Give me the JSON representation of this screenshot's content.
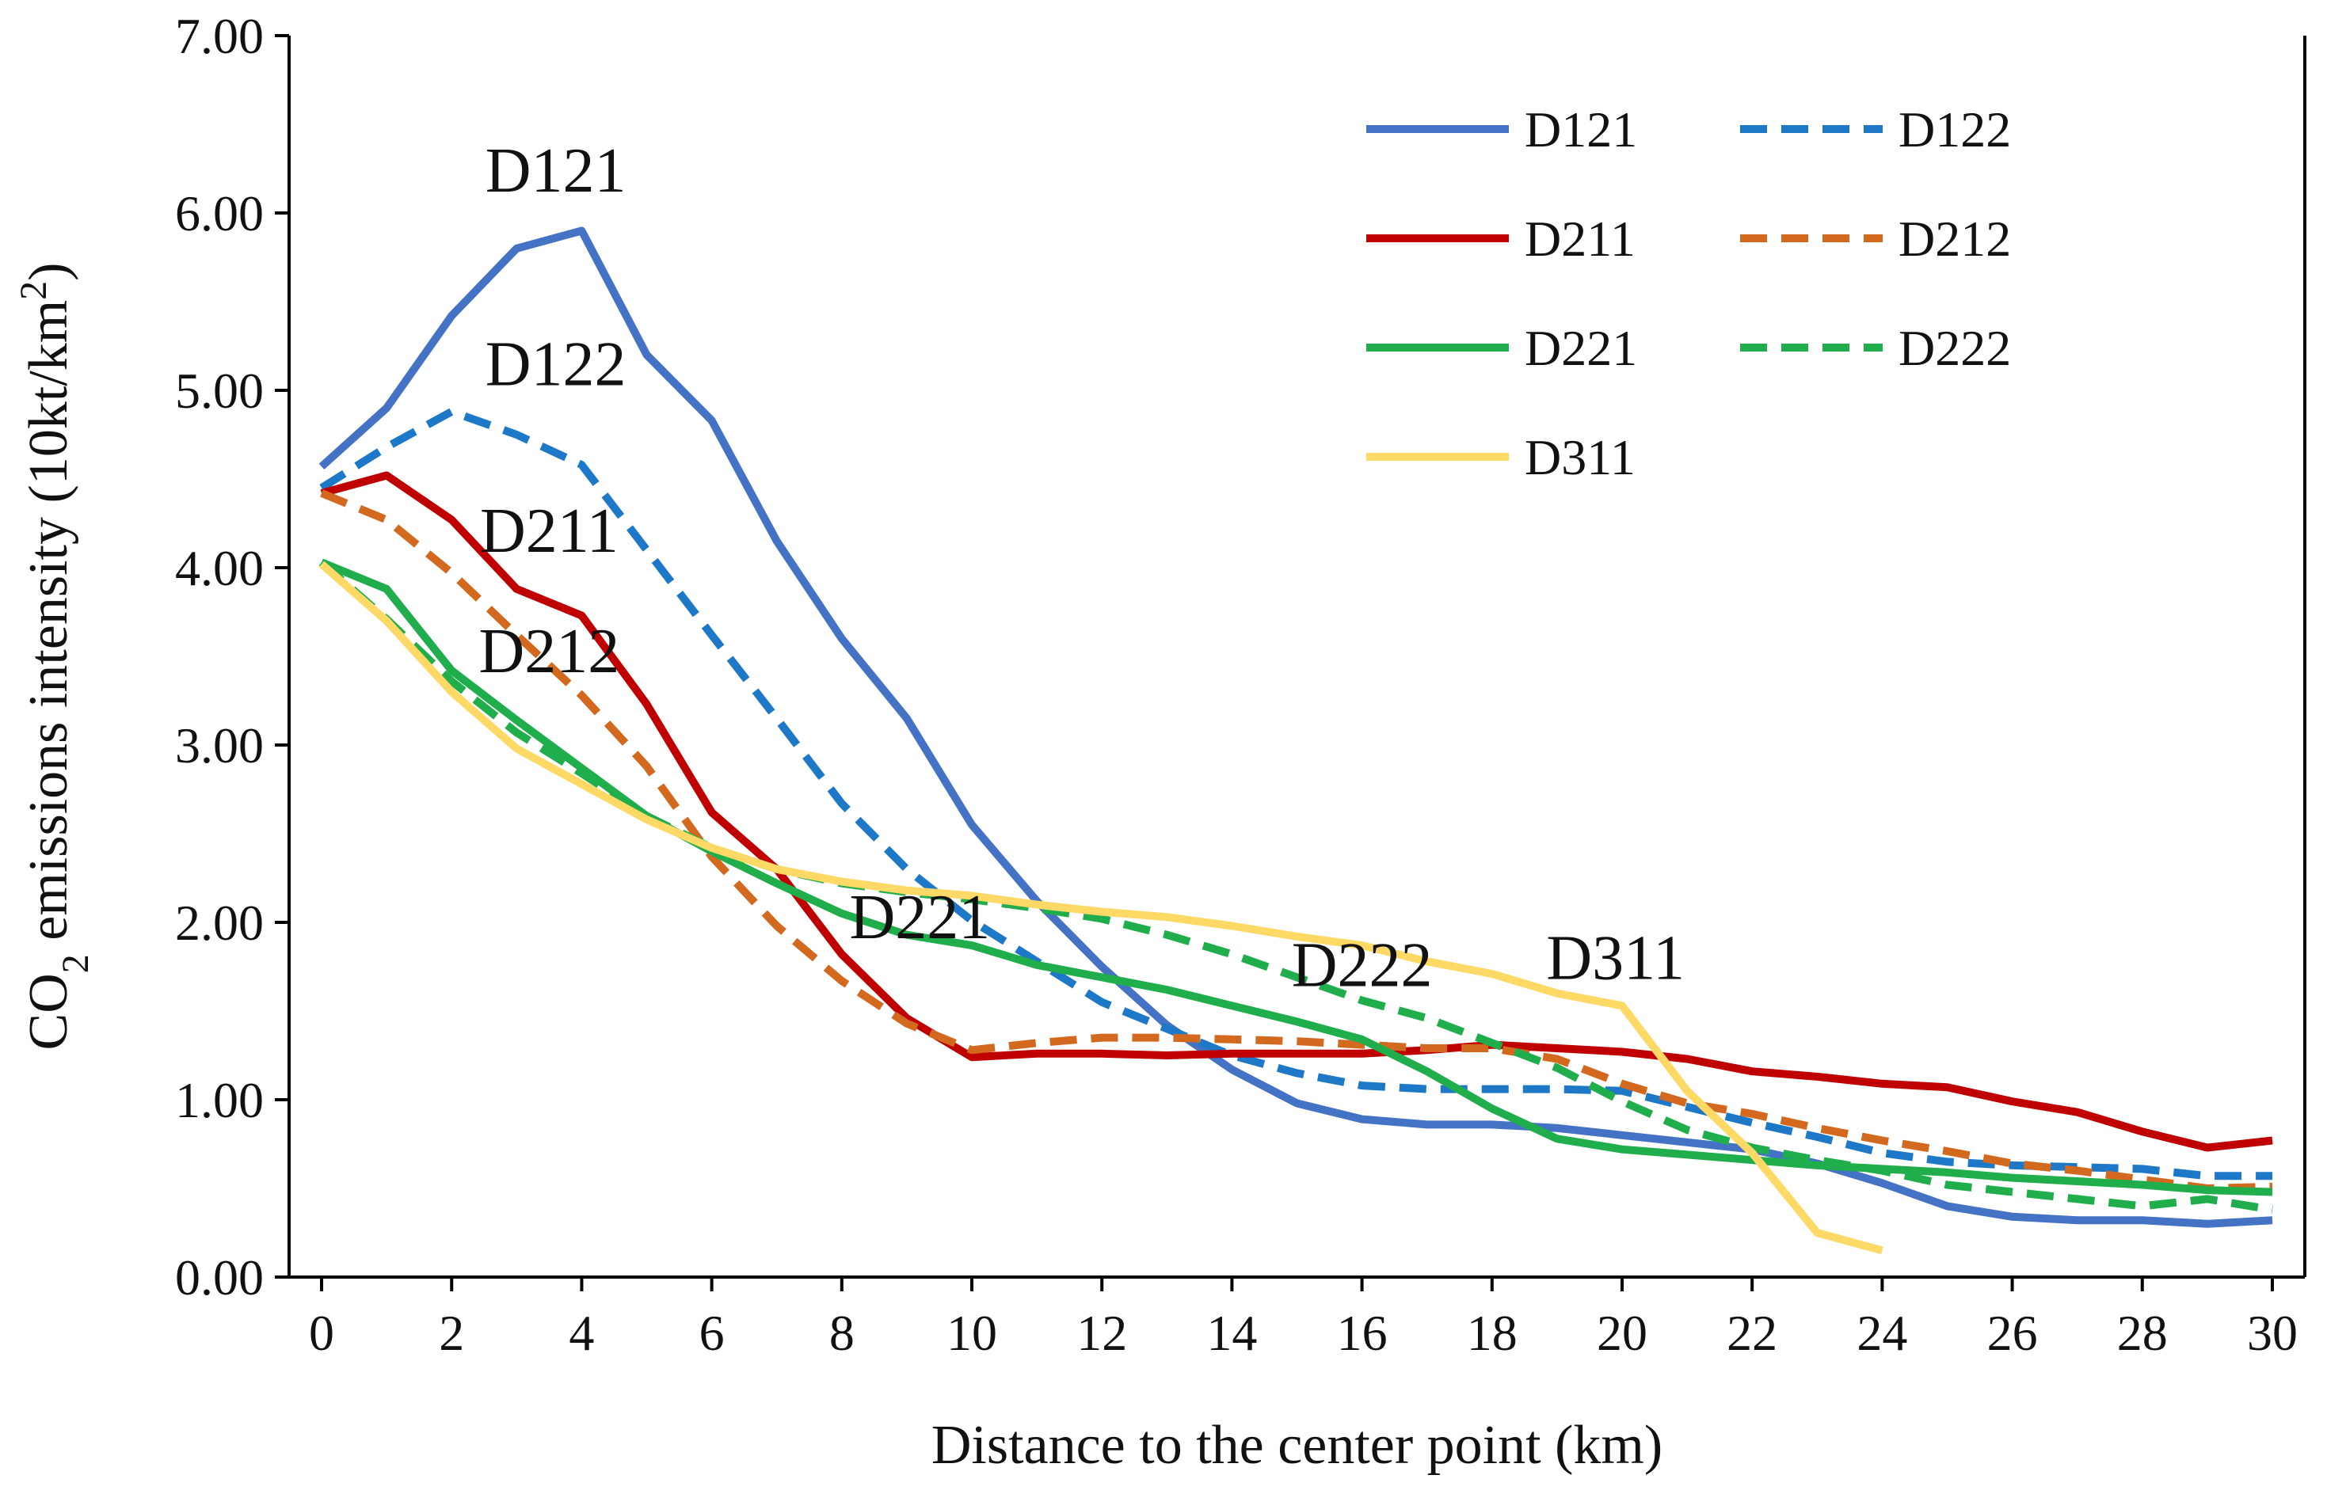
{
  "chart_data": {
    "type": "line",
    "title": "",
    "xlabel": "Distance to the center point (km)",
    "ylabel": {
      "prefix": "CO",
      "subscript": "2",
      "suffix": " emissions intensity (10kt/km",
      "superscript": "2",
      "close": ")"
    },
    "xlim": [
      -0.5,
      30.5
    ],
    "ylim": [
      0,
      7
    ],
    "x_ticks": [
      0,
      2,
      4,
      6,
      8,
      10,
      12,
      14,
      16,
      18,
      20,
      22,
      24,
      26,
      28,
      30
    ],
    "x_tick_labels": [
      "0",
      "2",
      "4",
      "6",
      "8",
      "10",
      "12",
      "14",
      "16",
      "18",
      "20",
      "22",
      "24",
      "26",
      "28",
      "30"
    ],
    "y_ticks": [
      0,
      1,
      2,
      3,
      4,
      5,
      6,
      7
    ],
    "y_tick_labels": [
      "0.00",
      "1.00",
      "2.00",
      "3.00",
      "4.00",
      "5.00",
      "6.00",
      "7.00"
    ],
    "grid": false,
    "legend_position": "top-right",
    "series": [
      {
        "name": "D121",
        "color": "#4472C4",
        "dash": "solid",
        "x": [
          0,
          1,
          2,
          3,
          4,
          5,
          6,
          7,
          8,
          9,
          10,
          11,
          12,
          13,
          14,
          15,
          16,
          17,
          18,
          19,
          20,
          21,
          22,
          23,
          24,
          25,
          26,
          27,
          28,
          29,
          30
        ],
        "y": [
          4.57,
          4.9,
          5.42,
          5.8,
          5.9,
          5.2,
          4.83,
          4.15,
          3.6,
          3.15,
          2.55,
          2.12,
          1.75,
          1.42,
          1.17,
          0.98,
          0.89,
          0.86,
          0.86,
          0.84,
          0.8,
          0.76,
          0.72,
          0.64,
          0.53,
          0.4,
          0.34,
          0.32,
          0.32,
          0.3,
          0.32
        ]
      },
      {
        "name": "D122",
        "color": "#1E78C8",
        "dash": "dashed",
        "x": [
          0,
          1,
          2,
          3,
          4,
          5,
          6,
          7,
          8,
          9,
          10,
          11,
          12,
          13,
          14,
          15,
          16,
          17,
          18,
          19,
          20,
          21,
          22,
          23,
          24,
          25,
          26,
          27,
          28,
          29,
          30
        ],
        "y": [
          4.45,
          4.68,
          4.88,
          4.75,
          4.58,
          4.1,
          3.62,
          3.15,
          2.67,
          2.3,
          2.01,
          1.78,
          1.55,
          1.4,
          1.25,
          1.15,
          1.08,
          1.06,
          1.06,
          1.06,
          1.05,
          0.96,
          0.87,
          0.79,
          0.7,
          0.65,
          0.63,
          0.62,
          0.61,
          0.57,
          0.57
        ]
      },
      {
        "name": "D211",
        "color": "#C00000",
        "dash": "solid",
        "x": [
          0,
          1,
          2,
          3,
          4,
          5,
          6,
          7,
          8,
          9,
          10,
          11,
          12,
          13,
          14,
          15,
          16,
          17,
          18,
          19,
          20,
          21,
          22,
          23,
          24,
          25,
          26,
          27,
          28,
          29,
          30
        ],
        "y": [
          4.42,
          4.52,
          4.27,
          3.88,
          3.73,
          3.23,
          2.62,
          2.3,
          1.82,
          1.46,
          1.24,
          1.26,
          1.26,
          1.25,
          1.26,
          1.26,
          1.26,
          1.28,
          1.31,
          1.29,
          1.27,
          1.23,
          1.16,
          1.13,
          1.09,
          1.07,
          0.99,
          0.93,
          0.82,
          0.73,
          0.77
        ]
      },
      {
        "name": "D212",
        "color": "#D2691E",
        "dash": "dashed",
        "x": [
          0,
          1,
          2,
          3,
          4,
          5,
          6,
          7,
          8,
          9,
          10,
          11,
          12,
          13,
          14,
          15,
          16,
          17,
          18,
          19,
          20,
          21,
          22,
          23,
          24,
          25,
          26,
          27,
          28,
          29,
          30
        ],
        "y": [
          4.42,
          4.27,
          3.97,
          3.62,
          3.28,
          2.88,
          2.37,
          1.98,
          1.67,
          1.43,
          1.28,
          1.32,
          1.35,
          1.35,
          1.34,
          1.33,
          1.31,
          1.29,
          1.29,
          1.23,
          1.09,
          0.98,
          0.92,
          0.84,
          0.77,
          0.71,
          0.64,
          0.6,
          0.55,
          0.5,
          0.51
        ]
      },
      {
        "name": "D221",
        "color": "#1FAE4B",
        "dash": "solid",
        "x": [
          0,
          1,
          2,
          3,
          4,
          5,
          6,
          7,
          8,
          9,
          10,
          11,
          12,
          13,
          14,
          15,
          16,
          17,
          18,
          19,
          20,
          21,
          22,
          23,
          24,
          25,
          26,
          27,
          28,
          29,
          30
        ],
        "y": [
          4.03,
          3.88,
          3.42,
          3.14,
          2.87,
          2.6,
          2.4,
          2.22,
          2.05,
          1.93,
          1.87,
          1.76,
          1.69,
          1.62,
          1.53,
          1.44,
          1.34,
          1.16,
          0.95,
          0.78,
          0.72,
          0.69,
          0.66,
          0.63,
          0.61,
          0.59,
          0.56,
          0.54,
          0.52,
          0.49,
          0.48
        ]
      },
      {
        "name": "D222",
        "color": "#1FAE4B",
        "dash": "dashed",
        "x": [
          0,
          1,
          2,
          3,
          4,
          5,
          6,
          7,
          8,
          9,
          10,
          11,
          12,
          13,
          14,
          15,
          16,
          17,
          18,
          19,
          20,
          21,
          22,
          23,
          24,
          25,
          26,
          27,
          28,
          29,
          30
        ],
        "y": [
          4.03,
          3.71,
          3.36,
          3.07,
          2.84,
          2.6,
          2.42,
          2.3,
          2.22,
          2.17,
          2.13,
          2.08,
          2.02,
          1.93,
          1.82,
          1.69,
          1.56,
          1.46,
          1.32,
          1.18,
          0.99,
          0.83,
          0.73,
          0.66,
          0.6,
          0.52,
          0.48,
          0.44,
          0.4,
          0.44,
          0.38
        ]
      },
      {
        "name": "D311",
        "color": "#FFD966",
        "dash": "solid",
        "x": [
          0,
          1,
          2,
          3,
          4,
          5,
          6,
          7,
          8,
          9,
          10,
          11,
          12,
          13,
          14,
          15,
          16,
          17,
          18,
          19,
          20,
          21,
          22,
          23,
          24
        ],
        "y": [
          4.02,
          3.7,
          3.3,
          2.98,
          2.78,
          2.58,
          2.42,
          2.3,
          2.23,
          2.18,
          2.15,
          2.1,
          2.06,
          2.03,
          1.98,
          1.92,
          1.87,
          1.78,
          1.71,
          1.6,
          1.53,
          1.05,
          0.7,
          0.25,
          0.15
        ]
      }
    ],
    "annotations": [
      {
        "text": "D121",
        "x": 3.6,
        "y": 6.12
      },
      {
        "text": "D122",
        "x": 3.6,
        "y": 5.03
      },
      {
        "text": "D211",
        "x": 3.5,
        "y": 4.09
      },
      {
        "text": "D212",
        "x": 3.5,
        "y": 3.41
      },
      {
        "text": "D221",
        "x": 9.2,
        "y": 1.91
      },
      {
        "text": "D222",
        "x": 16.0,
        "y": 1.64
      },
      {
        "text": "D311",
        "x": 19.9,
        "y": 1.68
      }
    ]
  }
}
